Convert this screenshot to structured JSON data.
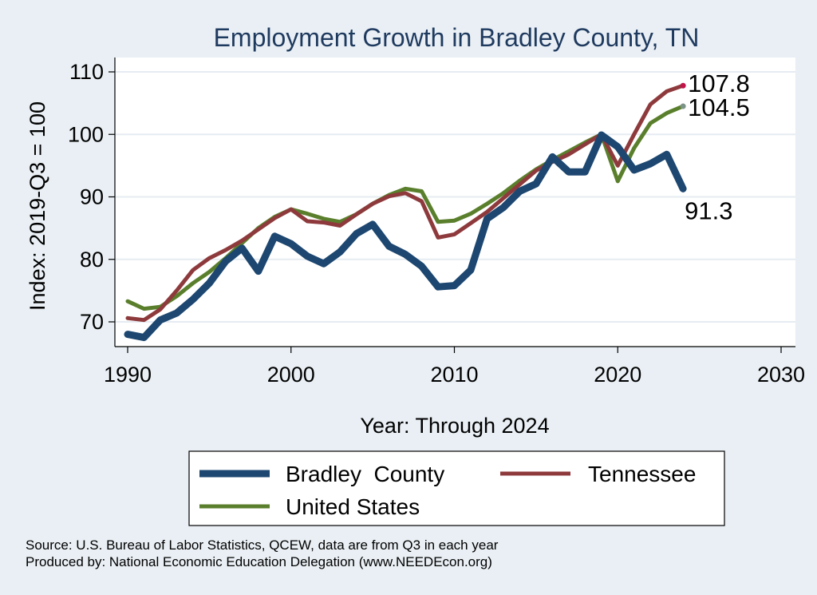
{
  "chart_data": {
    "type": "line",
    "title": "Employment Growth in Bradley County, TN",
    "xlabel": "Year: Through 2024",
    "ylabel": "Index: 2019-Q3 = 100",
    "xlim": [
      1990,
      2030
    ],
    "ylim": [
      65,
      112
    ],
    "xticks": [
      1990,
      2000,
      2010,
      2020,
      2030
    ],
    "yticks": [
      70,
      80,
      90,
      100,
      110
    ],
    "grid": true,
    "legend_position": "bottom",
    "x": [
      1990,
      1991,
      1992,
      1993,
      1994,
      1995,
      1996,
      1997,
      1998,
      1999,
      2000,
      2001,
      2002,
      2003,
      2004,
      2005,
      2006,
      2007,
      2008,
      2009,
      2010,
      2011,
      2012,
      2013,
      2014,
      2015,
      2016,
      2017,
      2018,
      2019,
      2020,
      2021,
      2022,
      2023,
      2024
    ],
    "series": [
      {
        "name": "United States",
        "color": "#5a7f2c",
        "values": [
          73.3,
          72.1,
          72.4,
          74.1,
          76.2,
          78.0,
          80.2,
          82.6,
          85.0,
          86.8,
          88.0,
          87.3,
          86.5,
          86.0,
          87.2,
          88.9,
          90.3,
          91.3,
          90.9,
          86.0,
          86.2,
          87.3,
          88.9,
          90.6,
          92.6,
          94.4,
          95.9,
          97.3,
          98.7,
          100.0,
          92.5,
          97.8,
          101.8,
          103.4,
          104.5
        ],
        "end_label": "104.5",
        "end_color": "#7c9488"
      },
      {
        "name": "Tennessee",
        "color": "#8e3a3c",
        "values": [
          70.6,
          70.3,
          72.0,
          75.0,
          78.3,
          80.2,
          81.5,
          83.0,
          84.8,
          86.6,
          88.0,
          86.1,
          85.9,
          85.4,
          87.2,
          88.9,
          90.1,
          90.6,
          89.3,
          83.5,
          84.0,
          85.8,
          87.6,
          89.8,
          92.0,
          94.2,
          95.6,
          96.8,
          98.4,
          100.0,
          95.0,
          100.0,
          104.8,
          106.9,
          107.8
        ],
        "end_label": "107.8",
        "end_color": "#c0144a"
      },
      {
        "name": "Bradley  County",
        "color": "#1d4770",
        "values": [
          68.0,
          67.5,
          70.3,
          71.4,
          73.6,
          76.2,
          79.7,
          81.8,
          78.1,
          83.7,
          82.5,
          80.5,
          79.3,
          81.2,
          84.1,
          85.6,
          82.1,
          80.8,
          78.9,
          75.6,
          75.8,
          78.3,
          86.5,
          88.3,
          90.9,
          92.1,
          96.4,
          94.0,
          94.0,
          99.9,
          98.0,
          94.3,
          95.3,
          96.8,
          91.3
        ],
        "end_label": "91.3",
        "end_color": "#1d4770"
      }
    ]
  },
  "footer": {
    "source": "Source: U.S. Bureau of Labor Statistics, QCEW, data are from Q3 in each year",
    "producer": "Produced by: National Economic Education Delegation (www.NEEDEcon.org)"
  }
}
